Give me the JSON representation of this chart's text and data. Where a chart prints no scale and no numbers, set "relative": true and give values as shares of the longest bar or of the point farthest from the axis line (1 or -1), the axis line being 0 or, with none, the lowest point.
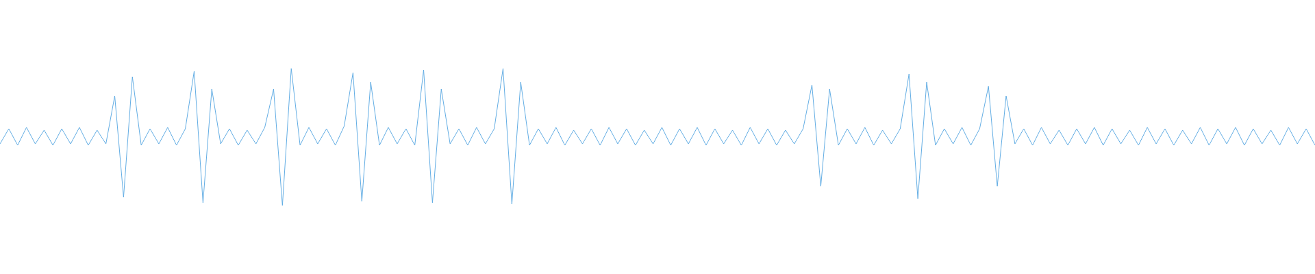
{
  "chart_data": {
    "type": "line",
    "relative": true,
    "tick_labels": false,
    "categories": [
      null,
      null,
      null,
      null,
      null,
      null,
      null,
      null,
      null,
      null,
      null,
      null,
      null,
      null,
      null,
      null,
      null,
      null,
      null,
      null,
      null,
      null,
      null,
      null,
      null,
      null,
      null,
      null,
      null,
      null,
      null,
      null,
      null,
      null,
      null,
      null,
      null,
      null,
      null,
      null,
      null,
      null,
      null,
      null,
      null,
      null,
      null,
      null,
      null,
      null,
      null,
      null,
      null,
      null,
      null,
      null,
      null,
      null,
      null,
      null,
      null,
      null,
      null,
      null,
      null,
      null,
      null,
      null,
      null,
      null,
      null,
      null,
      null,
      null,
      null,
      null,
      null,
      null,
      null,
      null,
      null,
      null,
      null,
      null,
      null,
      null,
      null,
      null,
      null,
      null,
      null,
      null,
      null,
      null,
      null,
      null,
      null,
      null,
      null,
      null,
      null,
      null,
      null,
      null,
      null,
      null,
      null,
      null,
      null,
      null,
      null,
      null,
      null,
      null,
      null,
      null,
      null,
      null,
      null,
      null,
      null,
      null,
      null,
      null,
      null,
      null,
      null,
      null,
      null,
      null,
      null,
      null,
      null,
      null,
      null,
      null,
      null,
      null,
      null,
      null,
      null,
      null,
      null,
      null,
      null,
      null,
      null,
      null,
      null,
      null
    ],
    "series": [
      {
        "color": "#62ade4",
        "values": [
          0.45,
          0.56,
          0.44,
          0.57,
          0.45,
          0.55,
          0.44,
          0.56,
          0.45,
          0.57,
          0.44,
          0.55,
          0.45,
          0.8,
          0.06,
          0.94,
          0.44,
          0.56,
          0.45,
          0.57,
          0.44,
          0.56,
          0.98,
          0.02,
          0.85,
          0.45,
          0.56,
          0.44,
          0.55,
          0.45,
          0.57,
          0.85,
          0,
          1,
          0.44,
          0.57,
          0.45,
          0.56,
          0.44,
          0.58,
          0.97,
          0.03,
          0.9,
          0.44,
          0.57,
          0.45,
          0.56,
          0.44,
          0.99,
          0.02,
          0.85,
          0.45,
          0.56,
          0.44,
          0.57,
          0.45,
          0.56,
          1,
          0.01,
          0.9,
          0.44,
          0.56,
          0.45,
          0.57,
          0.44,
          0.55,
          0.45,
          0.56,
          0.44,
          0.57,
          0.45,
          0.56,
          0.44,
          0.55,
          0.45,
          0.57,
          0.44,
          0.56,
          0.45,
          0.57,
          0.44,
          0.56,
          0.45,
          0.55,
          0.44,
          0.57,
          0.45,
          0.56,
          0.44,
          0.55,
          0.45,
          0.56,
          0.88,
          0.14,
          0.85,
          0.44,
          0.56,
          0.45,
          0.57,
          0.44,
          0.55,
          0.45,
          0.56,
          0.96,
          0.05,
          0.9,
          0.44,
          0.56,
          0.45,
          0.57,
          0.44,
          0.56,
          0.87,
          0.14,
          0.8,
          0.45,
          0.56,
          0.44,
          0.57,
          0.45,
          0.55,
          0.44,
          0.56,
          0.45,
          0.57,
          0.44,
          0.56,
          0.45,
          0.55,
          0.44,
          0.57,
          0.45,
          0.56,
          0.44,
          0.55,
          0.45,
          0.57,
          0.44,
          0.56,
          0.45,
          0.57,
          0.44,
          0.56,
          0.45,
          0.55,
          0.44,
          0.57,
          0.45,
          0.56,
          0.44
        ]
      }
    ]
  }
}
